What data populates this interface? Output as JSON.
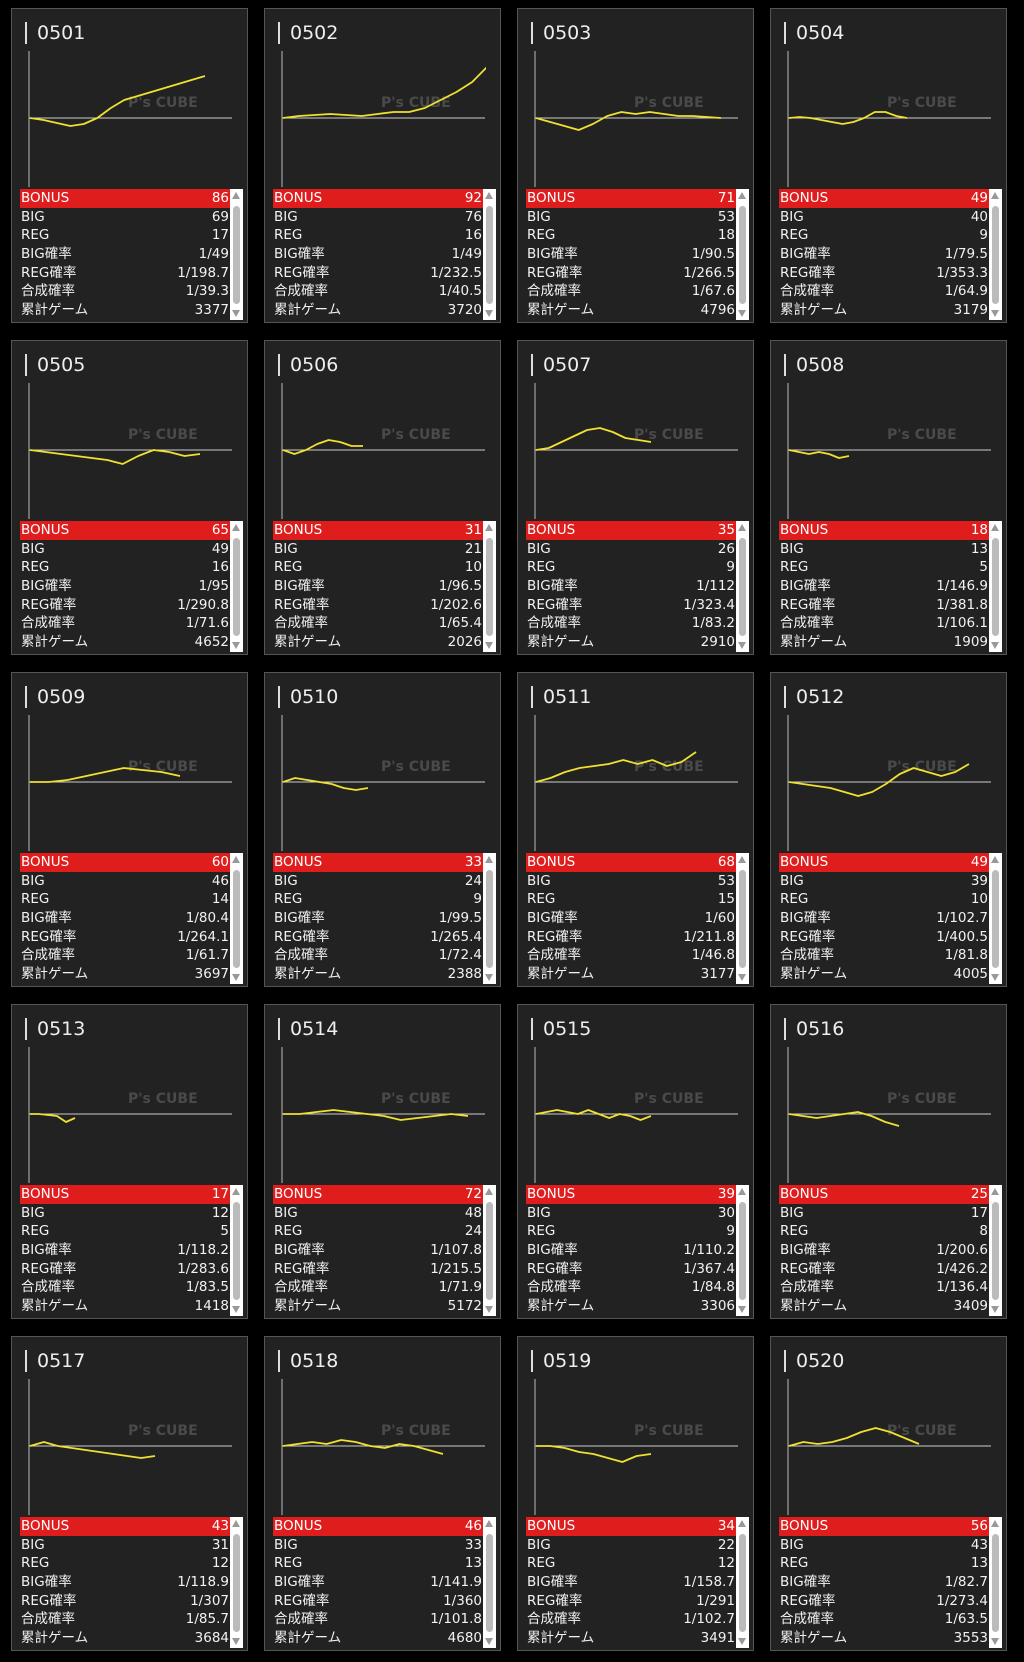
{
  "labels": {
    "bonus": "BONUS",
    "big": "BIG",
    "reg": "REG",
    "big_prob": "BIG確率",
    "reg_prob": "REG確率",
    "combined_prob": "合成確率",
    "total_games": "累計ゲーム"
  },
  "watermark": {
    "brand": "P's CUBE"
  },
  "colors": {
    "bonus_row": "#e01d1d",
    "chart_line": "#f0e030",
    "baseline": "#cccccc"
  },
  "machines": [
    {
      "id": "0501",
      "bonus": "86",
      "big": "69",
      "reg": "17",
      "big_prob": "1/49",
      "reg_prob": "1/198.7",
      "combined_prob": "1/39.3",
      "total_games": "3377"
    },
    {
      "id": "0502",
      "bonus": "92",
      "big": "76",
      "reg": "16",
      "big_prob": "1/49",
      "reg_prob": "1/232.5",
      "combined_prob": "1/40.5",
      "total_games": "3720"
    },
    {
      "id": "0503",
      "bonus": "71",
      "big": "53",
      "reg": "18",
      "big_prob": "1/90.5",
      "reg_prob": "1/266.5",
      "combined_prob": "1/67.6",
      "total_games": "4796"
    },
    {
      "id": "0504",
      "bonus": "49",
      "big": "40",
      "reg": "9",
      "big_prob": "1/79.5",
      "reg_prob": "1/353.3",
      "combined_prob": "1/64.9",
      "total_games": "3179"
    },
    {
      "id": "0505",
      "bonus": "65",
      "big": "49",
      "reg": "16",
      "big_prob": "1/95",
      "reg_prob": "1/290.8",
      "combined_prob": "1/71.6",
      "total_games": "4652"
    },
    {
      "id": "0506",
      "bonus": "31",
      "big": "21",
      "reg": "10",
      "big_prob": "1/96.5",
      "reg_prob": "1/202.6",
      "combined_prob": "1/65.4",
      "total_games": "2026"
    },
    {
      "id": "0507",
      "bonus": "35",
      "big": "26",
      "reg": "9",
      "big_prob": "1/112",
      "reg_prob": "1/323.4",
      "combined_prob": "1/83.2",
      "total_games": "2910"
    },
    {
      "id": "0508",
      "bonus": "18",
      "big": "13",
      "reg": "5",
      "big_prob": "1/146.9",
      "reg_prob": "1/381.8",
      "combined_prob": "1/106.1",
      "total_games": "1909"
    },
    {
      "id": "0509",
      "bonus": "60",
      "big": "46",
      "reg": "14",
      "big_prob": "1/80.4",
      "reg_prob": "1/264.1",
      "combined_prob": "1/61.7",
      "total_games": "3697"
    },
    {
      "id": "0510",
      "bonus": "33",
      "big": "24",
      "reg": "9",
      "big_prob": "1/99.5",
      "reg_prob": "1/265.4",
      "combined_prob": "1/72.4",
      "total_games": "2388"
    },
    {
      "id": "0511",
      "bonus": "68",
      "big": "53",
      "reg": "15",
      "big_prob": "1/60",
      "reg_prob": "1/211.8",
      "combined_prob": "1/46.8",
      "total_games": "3177"
    },
    {
      "id": "0512",
      "bonus": "49",
      "big": "39",
      "reg": "10",
      "big_prob": "1/102.7",
      "reg_prob": "1/400.5",
      "combined_prob": "1/81.8",
      "total_games": "4005"
    },
    {
      "id": "0513",
      "bonus": "17",
      "big": "12",
      "reg": "5",
      "big_prob": "1/118.2",
      "reg_prob": "1/283.6",
      "combined_prob": "1/83.5",
      "total_games": "1418"
    },
    {
      "id": "0514",
      "bonus": "72",
      "big": "48",
      "reg": "24",
      "big_prob": "1/107.8",
      "reg_prob": "1/215.5",
      "combined_prob": "1/71.9",
      "total_games": "5172"
    },
    {
      "id": "0515",
      "bonus": "39",
      "big": "30",
      "reg": "9",
      "big_prob": "1/110.2",
      "reg_prob": "1/367.4",
      "combined_prob": "1/84.8",
      "total_games": "3306"
    },
    {
      "id": "0516",
      "bonus": "25",
      "big": "17",
      "reg": "8",
      "big_prob": "1/200.6",
      "reg_prob": "1/426.2",
      "combined_prob": "1/136.4",
      "total_games": "3409"
    },
    {
      "id": "0517",
      "bonus": "43",
      "big": "31",
      "reg": "12",
      "big_prob": "1/118.9",
      "reg_prob": "1/307",
      "combined_prob": "1/85.7",
      "total_games": "3684"
    },
    {
      "id": "0518",
      "bonus": "46",
      "big": "33",
      "reg": "13",
      "big_prob": "1/141.9",
      "reg_prob": "1/360",
      "combined_prob": "1/101.8",
      "total_games": "4680"
    },
    {
      "id": "0519",
      "bonus": "34",
      "big": "22",
      "reg": "12",
      "big_prob": "1/158.7",
      "reg_prob": "1/291",
      "combined_prob": "1/102.7",
      "total_games": "3491"
    },
    {
      "id": "0520",
      "bonus": "56",
      "big": "43",
      "reg": "13",
      "big_prob": "1/82.7",
      "reg_prob": "1/273.4",
      "combined_prob": "1/63.5",
      "total_games": "3553"
    }
  ]
}
